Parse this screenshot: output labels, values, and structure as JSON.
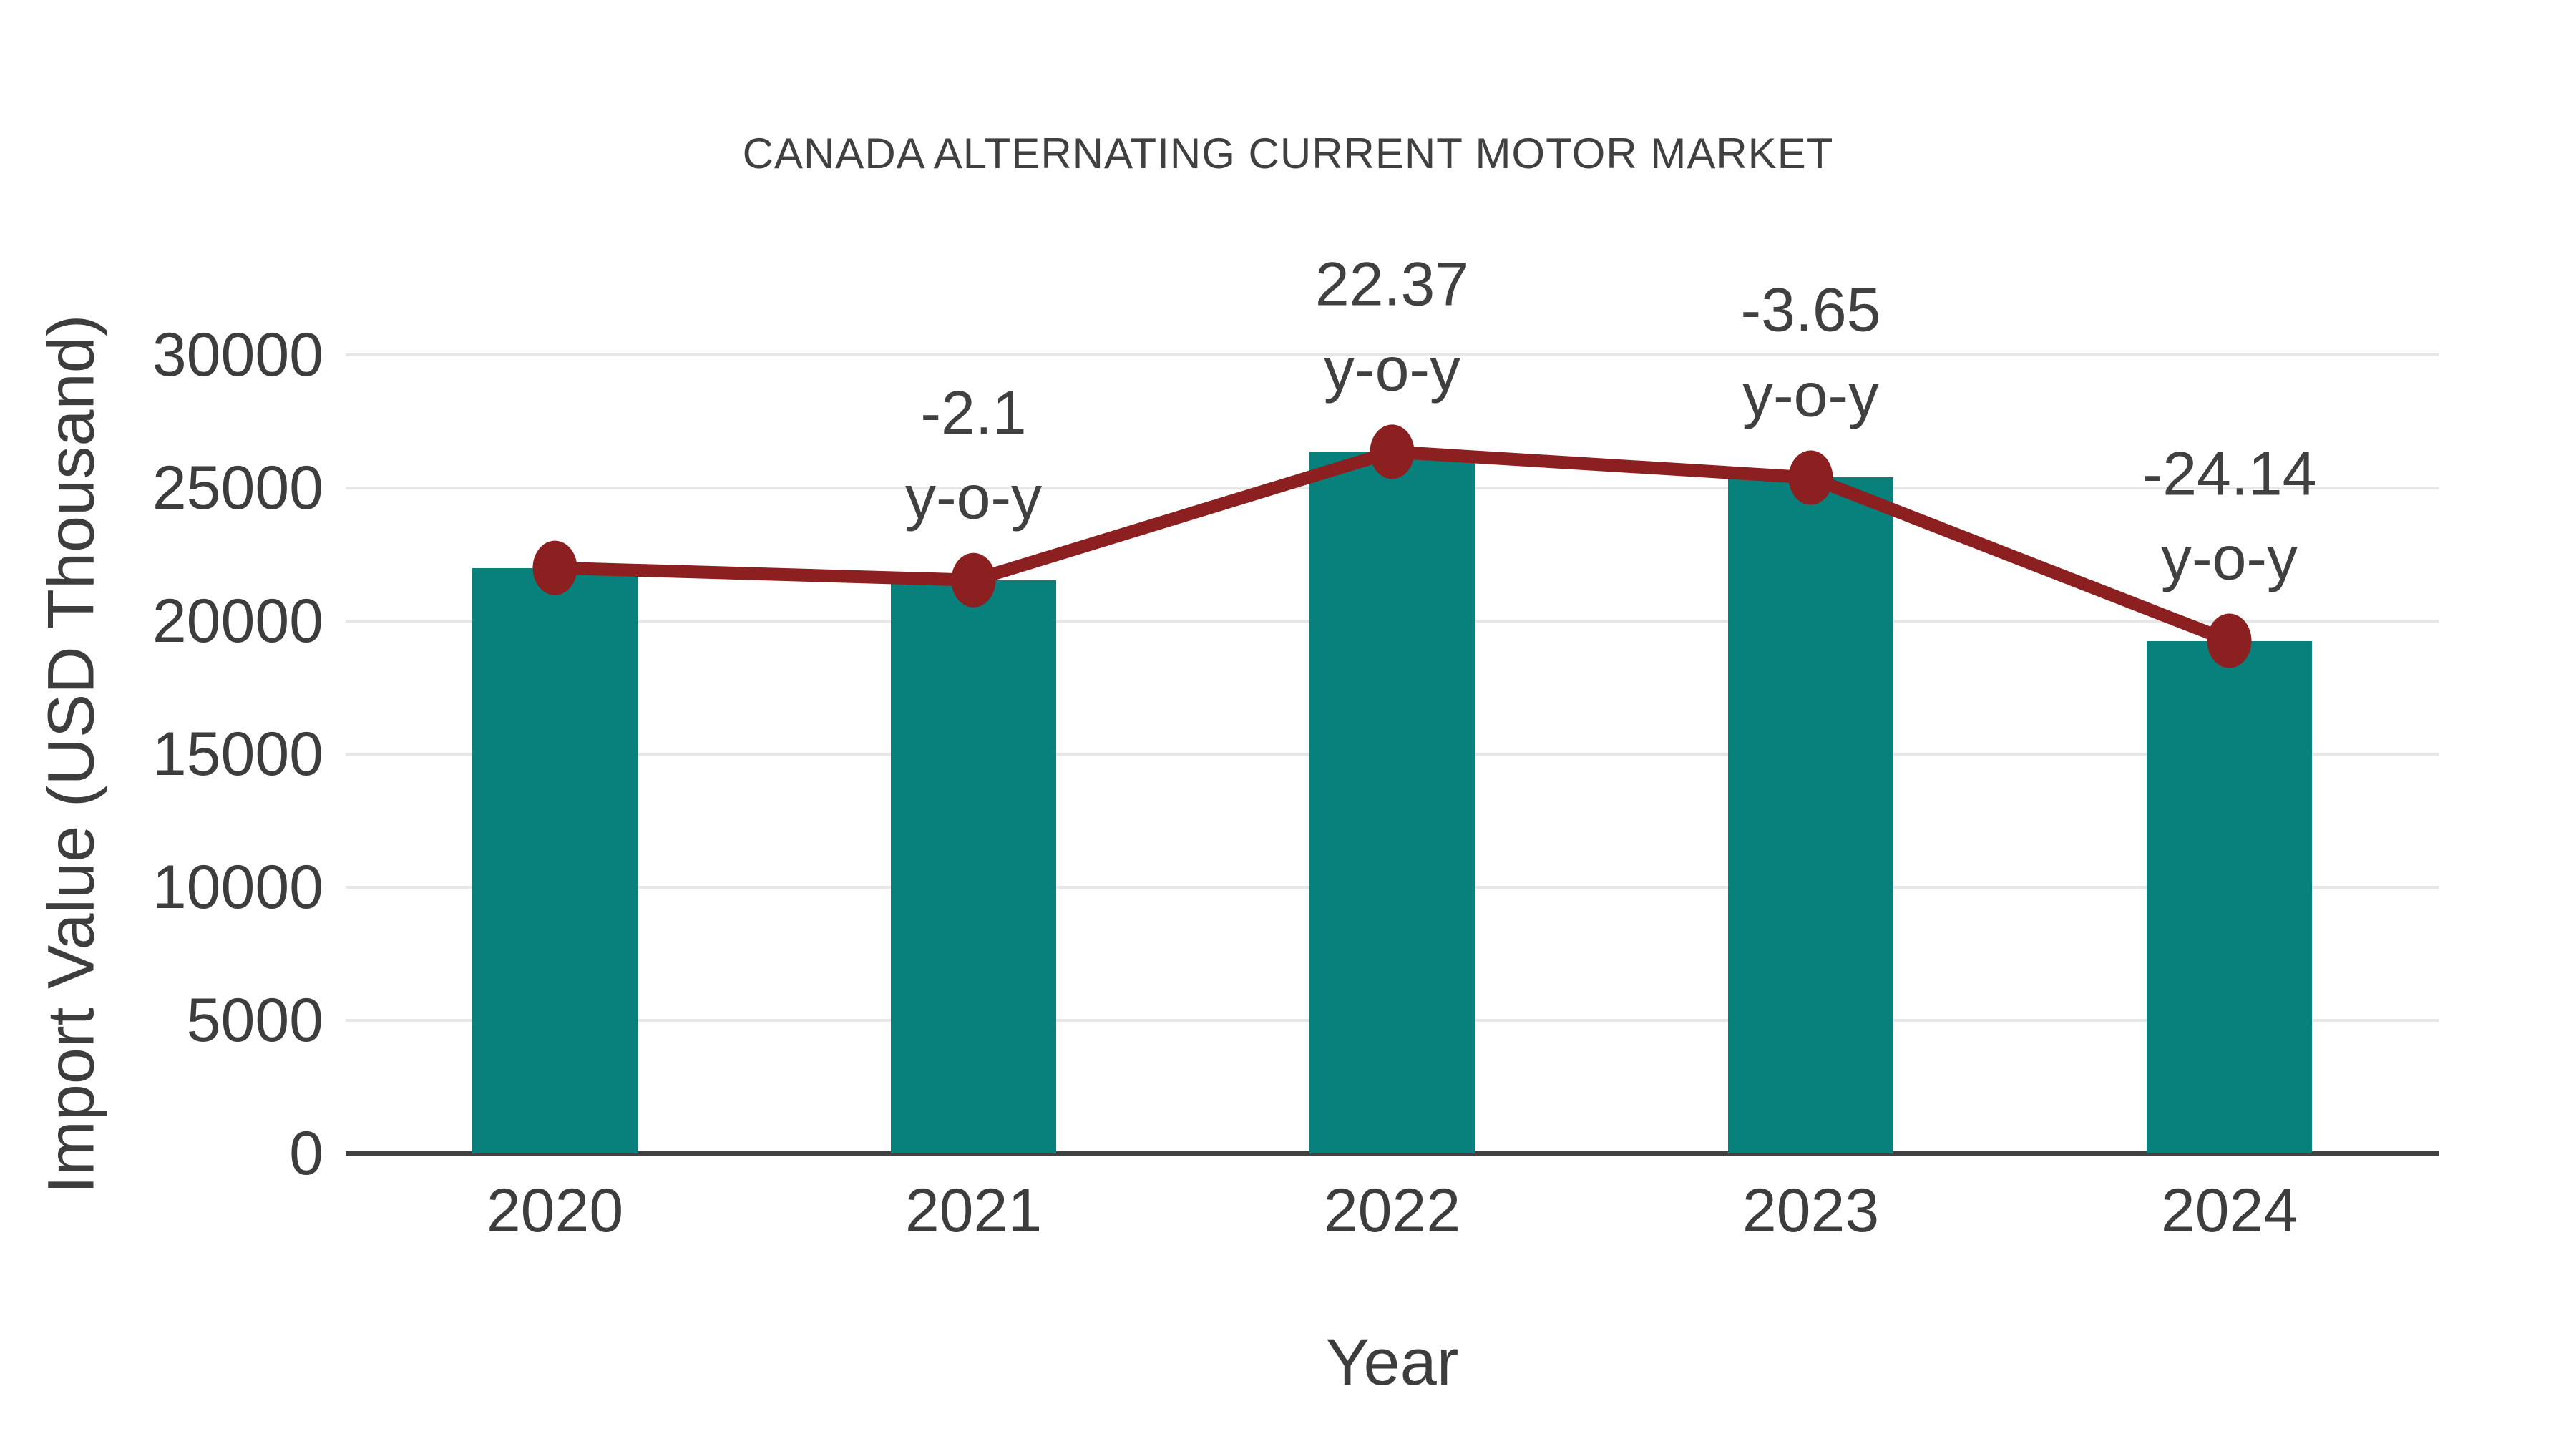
{
  "title": "CANADA ALTERNATING CURRENT MOTOR MARKET",
  "colors": {
    "bar": "#08807c",
    "line": "#8c1f1f",
    "marker": "#8c1f1f",
    "text": "#404040",
    "tick_text": "#3d3d3d",
    "grid": "#e7e7e7",
    "axis": "#424242",
    "background": "#ffffff"
  },
  "chart_data": {
    "type": "bar",
    "subtype": "bar-with-line-overlay",
    "title": "CANADA ALTERNATING CURRENT MOTOR MARKET",
    "xlabel": "Year",
    "ylabel": "Import Value (USD Thousand)",
    "categories": [
      "2020",
      "2021",
      "2022",
      "2023",
      "2024"
    ],
    "yticks": [
      0,
      5000,
      10000,
      15000,
      20000,
      25000,
      30000
    ],
    "ylim": [
      0,
      30000
    ],
    "grid": "horizontal",
    "legend_position": "none",
    "series": [
      {
        "name": "Import Value (USD Thousand)",
        "type": "bar",
        "color": "#08807c",
        "values": [
          22000,
          21540,
          26360,
          25390,
          19260
        ]
      },
      {
        "name": "y-o-y change",
        "type": "line",
        "color": "#8c1f1f",
        "values": [
          22000,
          21540,
          26360,
          25390,
          19260
        ],
        "pct_labels": [
          null,
          -2.1,
          22.37,
          -3.65,
          -24.14
        ]
      }
    ],
    "annotations": [
      {
        "category": "2021",
        "value": "-2.1",
        "unit": "y-o-y"
      },
      {
        "category": "2022",
        "value": "22.37",
        "unit": "y-o-y"
      },
      {
        "category": "2023",
        "value": "-3.65",
        "unit": "y-o-y"
      },
      {
        "category": "2024",
        "value": "-24.14",
        "unit": "y-o-y"
      }
    ]
  }
}
